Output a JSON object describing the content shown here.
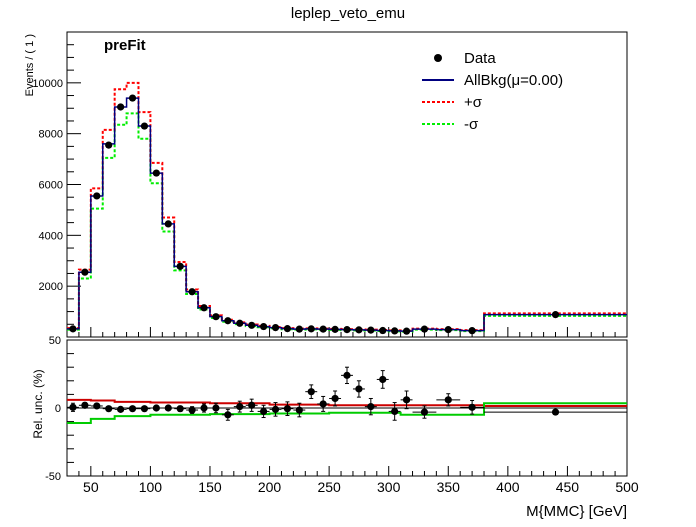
{
  "chart_data": {
    "type": "line",
    "title": "leplep_veto_emu",
    "badge": "preFit",
    "xlabel": "M{MMC} [GeV]",
    "xlim": [
      30,
      500
    ],
    "x_ticks": [
      50,
      100,
      150,
      200,
      250,
      300,
      350,
      400,
      450,
      500
    ],
    "top_panel": {
      "ylabel": "Events / ( 1 )",
      "ylim": [
        0,
        12000
      ],
      "y_ticks": [
        2000,
        4000,
        6000,
        8000,
        10000
      ],
      "legend_position": "top-right",
      "legend": [
        {
          "label": "Data",
          "symbol": "marker",
          "color": "#000000"
        },
        {
          "label": "AllBkg(μ=0.00)",
          "symbol": "line",
          "color": "#000080"
        },
        {
          "label": "+σ",
          "symbol": "dashed",
          "color": "#ff0000"
        },
        {
          "label": "-σ",
          "symbol": "dashed",
          "color": "#00ee00"
        }
      ],
      "bin_edges": [
        30,
        40,
        50,
        60,
        70,
        80,
        90,
        100,
        110,
        120,
        130,
        140,
        150,
        160,
        170,
        180,
        190,
        200,
        210,
        220,
        230,
        240,
        250,
        260,
        270,
        280,
        290,
        300,
        310,
        320,
        340,
        360,
        380,
        500
      ],
      "nominal": [
        320,
        2550,
        5550,
        7600,
        9050,
        9400,
        8300,
        6450,
        4450,
        2780,
        1780,
        1150,
        800,
        640,
        540,
        460,
        410,
        370,
        330,
        310,
        320,
        310,
        300,
        290,
        280,
        270,
        255,
        240,
        230,
        310,
        290,
        250,
        880
      ],
      "plus_sigma": [
        350,
        2650,
        5850,
        8150,
        9750,
        10000,
        8850,
        6850,
        4700,
        2950,
        1870,
        1220,
        850,
        680,
        575,
        490,
        440,
        395,
        350,
        330,
        340,
        330,
        320,
        310,
        300,
        290,
        275,
        260,
        245,
        330,
        310,
        270,
        930
      ],
      "minus_sigma": [
        290,
        2300,
        5050,
        7050,
        8350,
        8800,
        7800,
        6050,
        4150,
        2620,
        1690,
        1080,
        750,
        600,
        505,
        430,
        385,
        345,
        305,
        290,
        300,
        290,
        280,
        270,
        260,
        250,
        235,
        220,
        210,
        290,
        270,
        230,
        830
      ],
      "data_points": [
        {
          "x": 35,
          "y": 320
        },
        {
          "x": 45,
          "y": 2550
        },
        {
          "x": 55,
          "y": 5550
        },
        {
          "x": 65,
          "y": 7550
        },
        {
          "x": 75,
          "y": 9050
        },
        {
          "x": 85,
          "y": 9400
        },
        {
          "x": 95,
          "y": 8300
        },
        {
          "x": 105,
          "y": 6450
        },
        {
          "x": 115,
          "y": 4450
        },
        {
          "x": 125,
          "y": 2780
        },
        {
          "x": 135,
          "y": 1780
        },
        {
          "x": 145,
          "y": 1150
        },
        {
          "x": 155,
          "y": 800
        },
        {
          "x": 165,
          "y": 640
        },
        {
          "x": 175,
          "y": 540
        },
        {
          "x": 185,
          "y": 460
        },
        {
          "x": 195,
          "y": 410
        },
        {
          "x": 205,
          "y": 370
        },
        {
          "x": 215,
          "y": 330
        },
        {
          "x": 225,
          "y": 310
        },
        {
          "x": 235,
          "y": 320
        },
        {
          "x": 245,
          "y": 310
        },
        {
          "x": 255,
          "y": 300
        },
        {
          "x": 265,
          "y": 290
        },
        {
          "x": 275,
          "y": 280
        },
        {
          "x": 285,
          "y": 270
        },
        {
          "x": 295,
          "y": 255
        },
        {
          "x": 305,
          "y": 240
        },
        {
          "x": 315,
          "y": 230
        },
        {
          "x": 330,
          "y": 310
        },
        {
          "x": 350,
          "y": 290
        },
        {
          "x": 370,
          "y": 250
        },
        {
          "x": 440,
          "y": 880
        }
      ]
    },
    "bottom_panel": {
      "ylabel": "Rel. unc. (%)",
      "ylim": [
        -50,
        50
      ],
      "y_ticks": [
        -50,
        0,
        50
      ],
      "plus_sigma_edges": [
        30,
        50,
        70,
        100,
        150,
        200,
        250,
        300,
        380,
        500
      ],
      "plus_sigma_values": [
        6,
        5.5,
        4.5,
        4,
        3.5,
        2.5,
        2,
        2,
        1.5
      ],
      "minus_sigma_edges": [
        30,
        50,
        70,
        100,
        150,
        200,
        250,
        300,
        310,
        380,
        500
      ],
      "minus_sigma_values": [
        -11,
        -8,
        -6,
        -5,
        -4.5,
        -4,
        -3.5,
        -3.5,
        -5,
        3.5
      ],
      "data_points": [
        {
          "x": 35,
          "y": 0.5,
          "err": 3
        },
        {
          "x": 45,
          "y": 2,
          "err": 2
        },
        {
          "x": 55,
          "y": 1.5,
          "err": 1.5
        },
        {
          "x": 65,
          "y": -0.5,
          "err": 1.2
        },
        {
          "x": 75,
          "y": -1,
          "err": 1
        },
        {
          "x": 85,
          "y": -0.5,
          "err": 1
        },
        {
          "x": 95,
          "y": -0.5,
          "err": 1
        },
        {
          "x": 105,
          "y": 0,
          "err": 1.2
        },
        {
          "x": 115,
          "y": 0,
          "err": 1.5
        },
        {
          "x": 125,
          "y": -0.5,
          "err": 2
        },
        {
          "x": 135,
          "y": -1.5,
          "err": 2.5
        },
        {
          "x": 145,
          "y": 0,
          "err": 3
        },
        {
          "x": 155,
          "y": 0,
          "err": 3.5
        },
        {
          "x": 165,
          "y": -5,
          "err": 4
        },
        {
          "x": 175,
          "y": 1,
          "err": 4
        },
        {
          "x": 185,
          "y": 2,
          "err": 4.5
        },
        {
          "x": 195,
          "y": -2.5,
          "err": 4.5
        },
        {
          "x": 205,
          "y": -1,
          "err": 5
        },
        {
          "x": 215,
          "y": -0.5,
          "err": 5
        },
        {
          "x": 225,
          "y": -1.5,
          "err": 5
        },
        {
          "x": 235,
          "y": 12,
          "err": 5
        },
        {
          "x": 245,
          "y": 3,
          "err": 5.5
        },
        {
          "x": 255,
          "y": 7,
          "err": 5.5
        },
        {
          "x": 265,
          "y": 24,
          "err": 6
        },
        {
          "x": 275,
          "y": 14,
          "err": 6
        },
        {
          "x": 285,
          "y": 1,
          "err": 6
        },
        {
          "x": 295,
          "y": 21,
          "err": 6.5
        },
        {
          "x": 305,
          "y": -2.5,
          "err": 6.5
        },
        {
          "x": 315,
          "y": 6,
          "err": 6.5
        },
        {
          "x": 330,
          "y": -3,
          "err": 4.5
        },
        {
          "x": 350,
          "y": 6,
          "err": 4.5
        },
        {
          "x": 370,
          "y": 0.5,
          "err": 5
        },
        {
          "x": 440,
          "y": -3,
          "err": 1.5
        }
      ]
    },
    "colors": {
      "data": "#000000",
      "nominal": "#000080",
      "plus_sigma": "#ff0000",
      "minus_sigma": "#00ee00",
      "plus_sigma_ratio": "#cc0000",
      "minus_sigma_ratio": "#00cc00"
    }
  }
}
